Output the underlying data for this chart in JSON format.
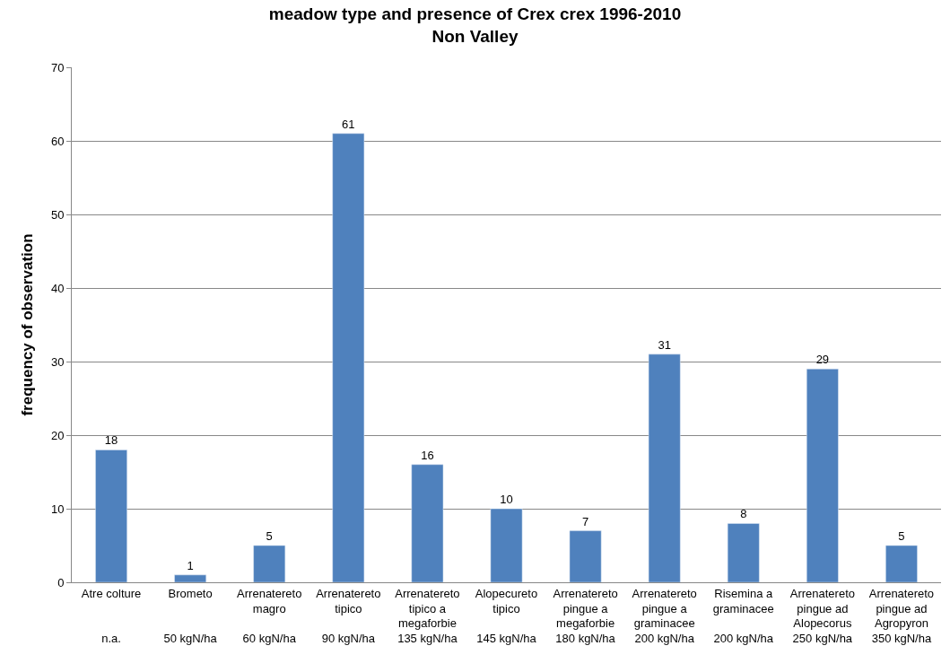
{
  "chart_data": {
    "type": "bar",
    "title": "meadow type and presence of Crex crex 1996-2010\nNon Valley",
    "ylabel": "frequency of observation",
    "categories": [
      "Atre colture\n\n\nn.a.",
      "Brometo\n\n\n50 kgN/ha",
      "Arrenatereto\nmagro\n\n60 kgN/ha",
      "Arrenatereto\ntipico\n\n90 kgN/ha",
      "Arrenatereto\ntipico a\nmegaforbie\n135 kgN/ha",
      "Alopecureto\ntipico\n\n145 kgN/ha",
      "Arrenatereto\npingue a\nmegaforbie\n180 kgN/ha",
      "Arrenatereto\npingue a\ngraminacee\n200 kgN/ha",
      "Risemina a\ngraminacee\n\n200 kgN/ha",
      "Arrenatereto\npingue ad\nAlopecorus\n250 kgN/ha",
      "Arrenatereto\npingue ad\nAgropyron\n350 kgN/ha"
    ],
    "values": [
      18,
      1,
      5,
      61,
      16,
      10,
      7,
      31,
      8,
      29,
      5
    ],
    "color": "#4f81bd",
    "ylim": [
      0,
      70
    ],
    "yticks": [
      0,
      10,
      20,
      30,
      40,
      50,
      60,
      70
    ],
    "grid": "y",
    "data_labels": true
  }
}
